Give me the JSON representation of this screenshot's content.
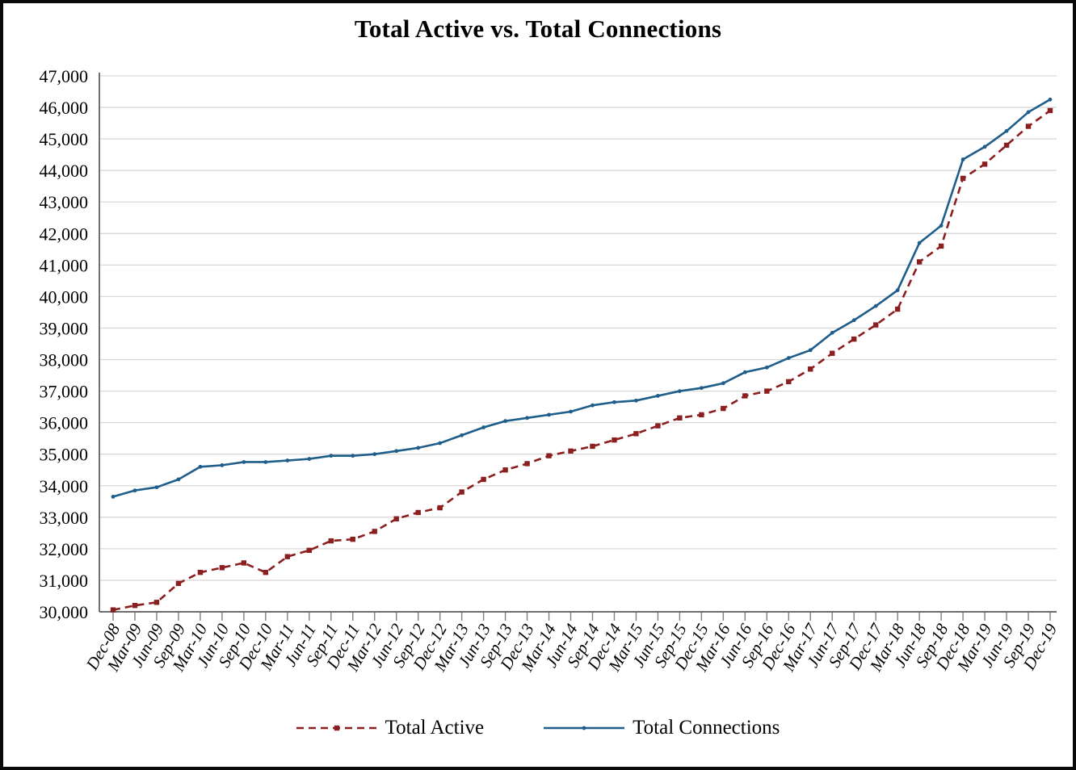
{
  "window": {
    "background": "#ffffff",
    "border_color": "#0a0a0a"
  },
  "chart_data": {
    "type": "line",
    "title": "Total Active vs. Total Connections",
    "xlabel": "",
    "ylabel": "",
    "categories": [
      "Dec-08",
      "Mar-09",
      "Jun-09",
      "Sep-09",
      "Mar-10",
      "Jun-10",
      "Sep-10",
      "Dec-10",
      "Mar-11",
      "Jun-11",
      "Sep-11",
      "Dec-11",
      "Mar-12",
      "Jun-12",
      "Sep-12",
      "Dec-12",
      "Mar-13",
      "Jun-13",
      "Sep-13",
      "Dec-13",
      "Mar-14",
      "Jun-14",
      "Sep-14",
      "Dec-14",
      "Mar-15",
      "Jun-15",
      "Sep-15",
      "Dec-15",
      "Mar-16",
      "Jun-16",
      "Sep-16",
      "Dec-16",
      "Mar-17",
      "Jun-17",
      "Sep-17",
      "Dec-17",
      "Mar-18",
      "Jun-18",
      "Sep-18",
      "Dec-18",
      "Mar-19",
      "Jun-19",
      "Sep-19",
      "Dec-19"
    ],
    "series": [
      {
        "name": "Total Active",
        "color": "#8B1E1E",
        "line_style": "dashed",
        "marker": "square",
        "values": [
          30060,
          30200,
          30300,
          30900,
          31250,
          31400,
          31550,
          31250,
          31750,
          31950,
          32250,
          32300,
          32550,
          32950,
          33150,
          33300,
          33800,
          34200,
          34500,
          34700,
          34950,
          35100,
          35250,
          35450,
          35650,
          35900,
          36150,
          36250,
          36450,
          36850,
          37000,
          37300,
          37700,
          38200,
          38650,
          39100,
          39600,
          41100,
          41600,
          43750,
          44200,
          44800,
          45400,
          45900
        ]
      },
      {
        "name": "Total Connections",
        "color": "#1F5D8A",
        "line_style": "solid",
        "marker": "dot",
        "values": [
          33650,
          33850,
          33950,
          34200,
          34600,
          34650,
          34750,
          34750,
          34800,
          34850,
          34950,
          34950,
          35000,
          35100,
          35200,
          35350,
          35600,
          35850,
          36050,
          36150,
          36250,
          36350,
          36550,
          36650,
          36700,
          36850,
          37000,
          37100,
          37250,
          37600,
          37750,
          38050,
          38300,
          38850,
          39250,
          39700,
          40200,
          41700,
          42250,
          44350,
          44750,
          45250,
          45850,
          46250
        ]
      }
    ],
    "ylim": [
      30000,
      47000
    ],
    "ytick_step": 1000,
    "grid": "horizontal",
    "legend_position": "bottom",
    "colors": {
      "gridline": "#D9D9D9",
      "axis": "#595959",
      "tick": "#7F7F7F",
      "label": "#000000"
    }
  }
}
